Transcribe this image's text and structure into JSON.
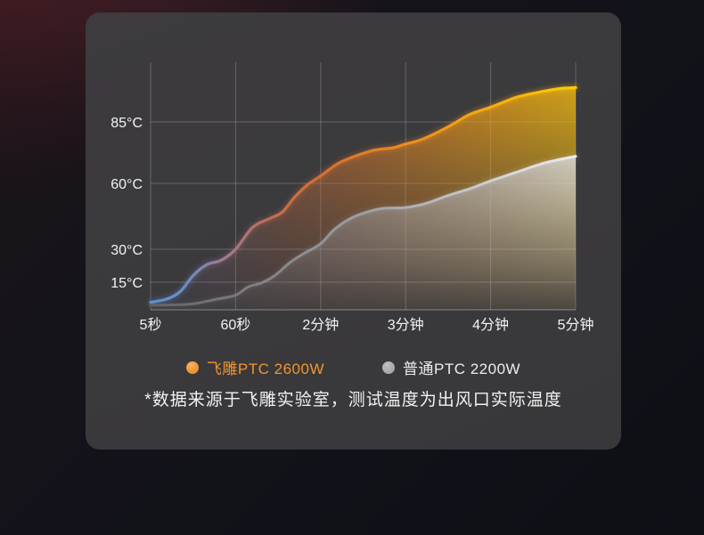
{
  "card": {
    "background": "#3a393c"
  },
  "chart_data": {
    "type": "area",
    "title": "",
    "xlabel": "",
    "ylabel": "",
    "x_ticks": [
      "5秒",
      "60秒",
      "2分钟",
      "3分钟",
      "4分钟",
      "5分钟"
    ],
    "y_ticks": [
      "85°C",
      "60°C",
      "30°C",
      "15°C"
    ],
    "y_tick_values": [
      85,
      60,
      30,
      15
    ],
    "ylim": [
      0,
      100
    ],
    "grid": "on",
    "legend_position": "bottom",
    "series": [
      {
        "name": "飞雕PTC 2600W",
        "color": "#f0962e",
        "stroke_end_color": "#ffcb05",
        "stroke_start_color": "#6292d8",
        "points": [
          [
            0,
            4
          ],
          [
            0.2,
            6
          ],
          [
            0.35,
            10
          ],
          [
            0.5,
            18
          ],
          [
            0.66,
            23
          ],
          [
            0.83,
            25
          ],
          [
            1,
            30
          ],
          [
            1.2,
            40
          ],
          [
            1.4,
            44
          ],
          [
            1.55,
            47
          ],
          [
            1.7,
            54
          ],
          [
            1.85,
            59.5
          ],
          [
            2,
            63
          ],
          [
            2.2,
            68
          ],
          [
            2.4,
            71
          ],
          [
            2.63,
            73.5
          ],
          [
            2.85,
            74.5
          ],
          [
            3,
            76
          ],
          [
            3.2,
            78
          ],
          [
            3.5,
            83
          ],
          [
            3.75,
            88
          ],
          [
            4,
            91
          ],
          [
            4.3,
            95
          ],
          [
            4.55,
            97
          ],
          [
            4.8,
            98.5
          ],
          [
            5,
            99
          ]
        ]
      },
      {
        "name": "普通PTC 2200W",
        "color": "#a9a9ac",
        "stroke_end_color": "#ecedef",
        "stroke_start_color": "#616165",
        "points": [
          [
            0,
            2.5
          ],
          [
            0.45,
            3
          ],
          [
            0.75,
            5.5
          ],
          [
            1,
            8
          ],
          [
            1.15,
            12.5
          ],
          [
            1.3,
            14.5
          ],
          [
            1.46,
            18
          ],
          [
            1.64,
            24
          ],
          [
            1.8,
            28
          ],
          [
            2,
            32.5
          ],
          [
            2.16,
            39
          ],
          [
            2.35,
            44
          ],
          [
            2.55,
            47
          ],
          [
            2.75,
            48.7
          ],
          [
            3,
            49
          ],
          [
            3.25,
            51
          ],
          [
            3.5,
            54.5
          ],
          [
            3.75,
            57.5
          ],
          [
            4,
            61
          ],
          [
            4.3,
            64.5
          ],
          [
            4.6,
            68
          ],
          [
            4.85,
            70
          ],
          [
            5,
            71
          ]
        ]
      }
    ]
  },
  "footnote": "*数据来源于飞雕实验室，测试温度为出风口实际温度"
}
